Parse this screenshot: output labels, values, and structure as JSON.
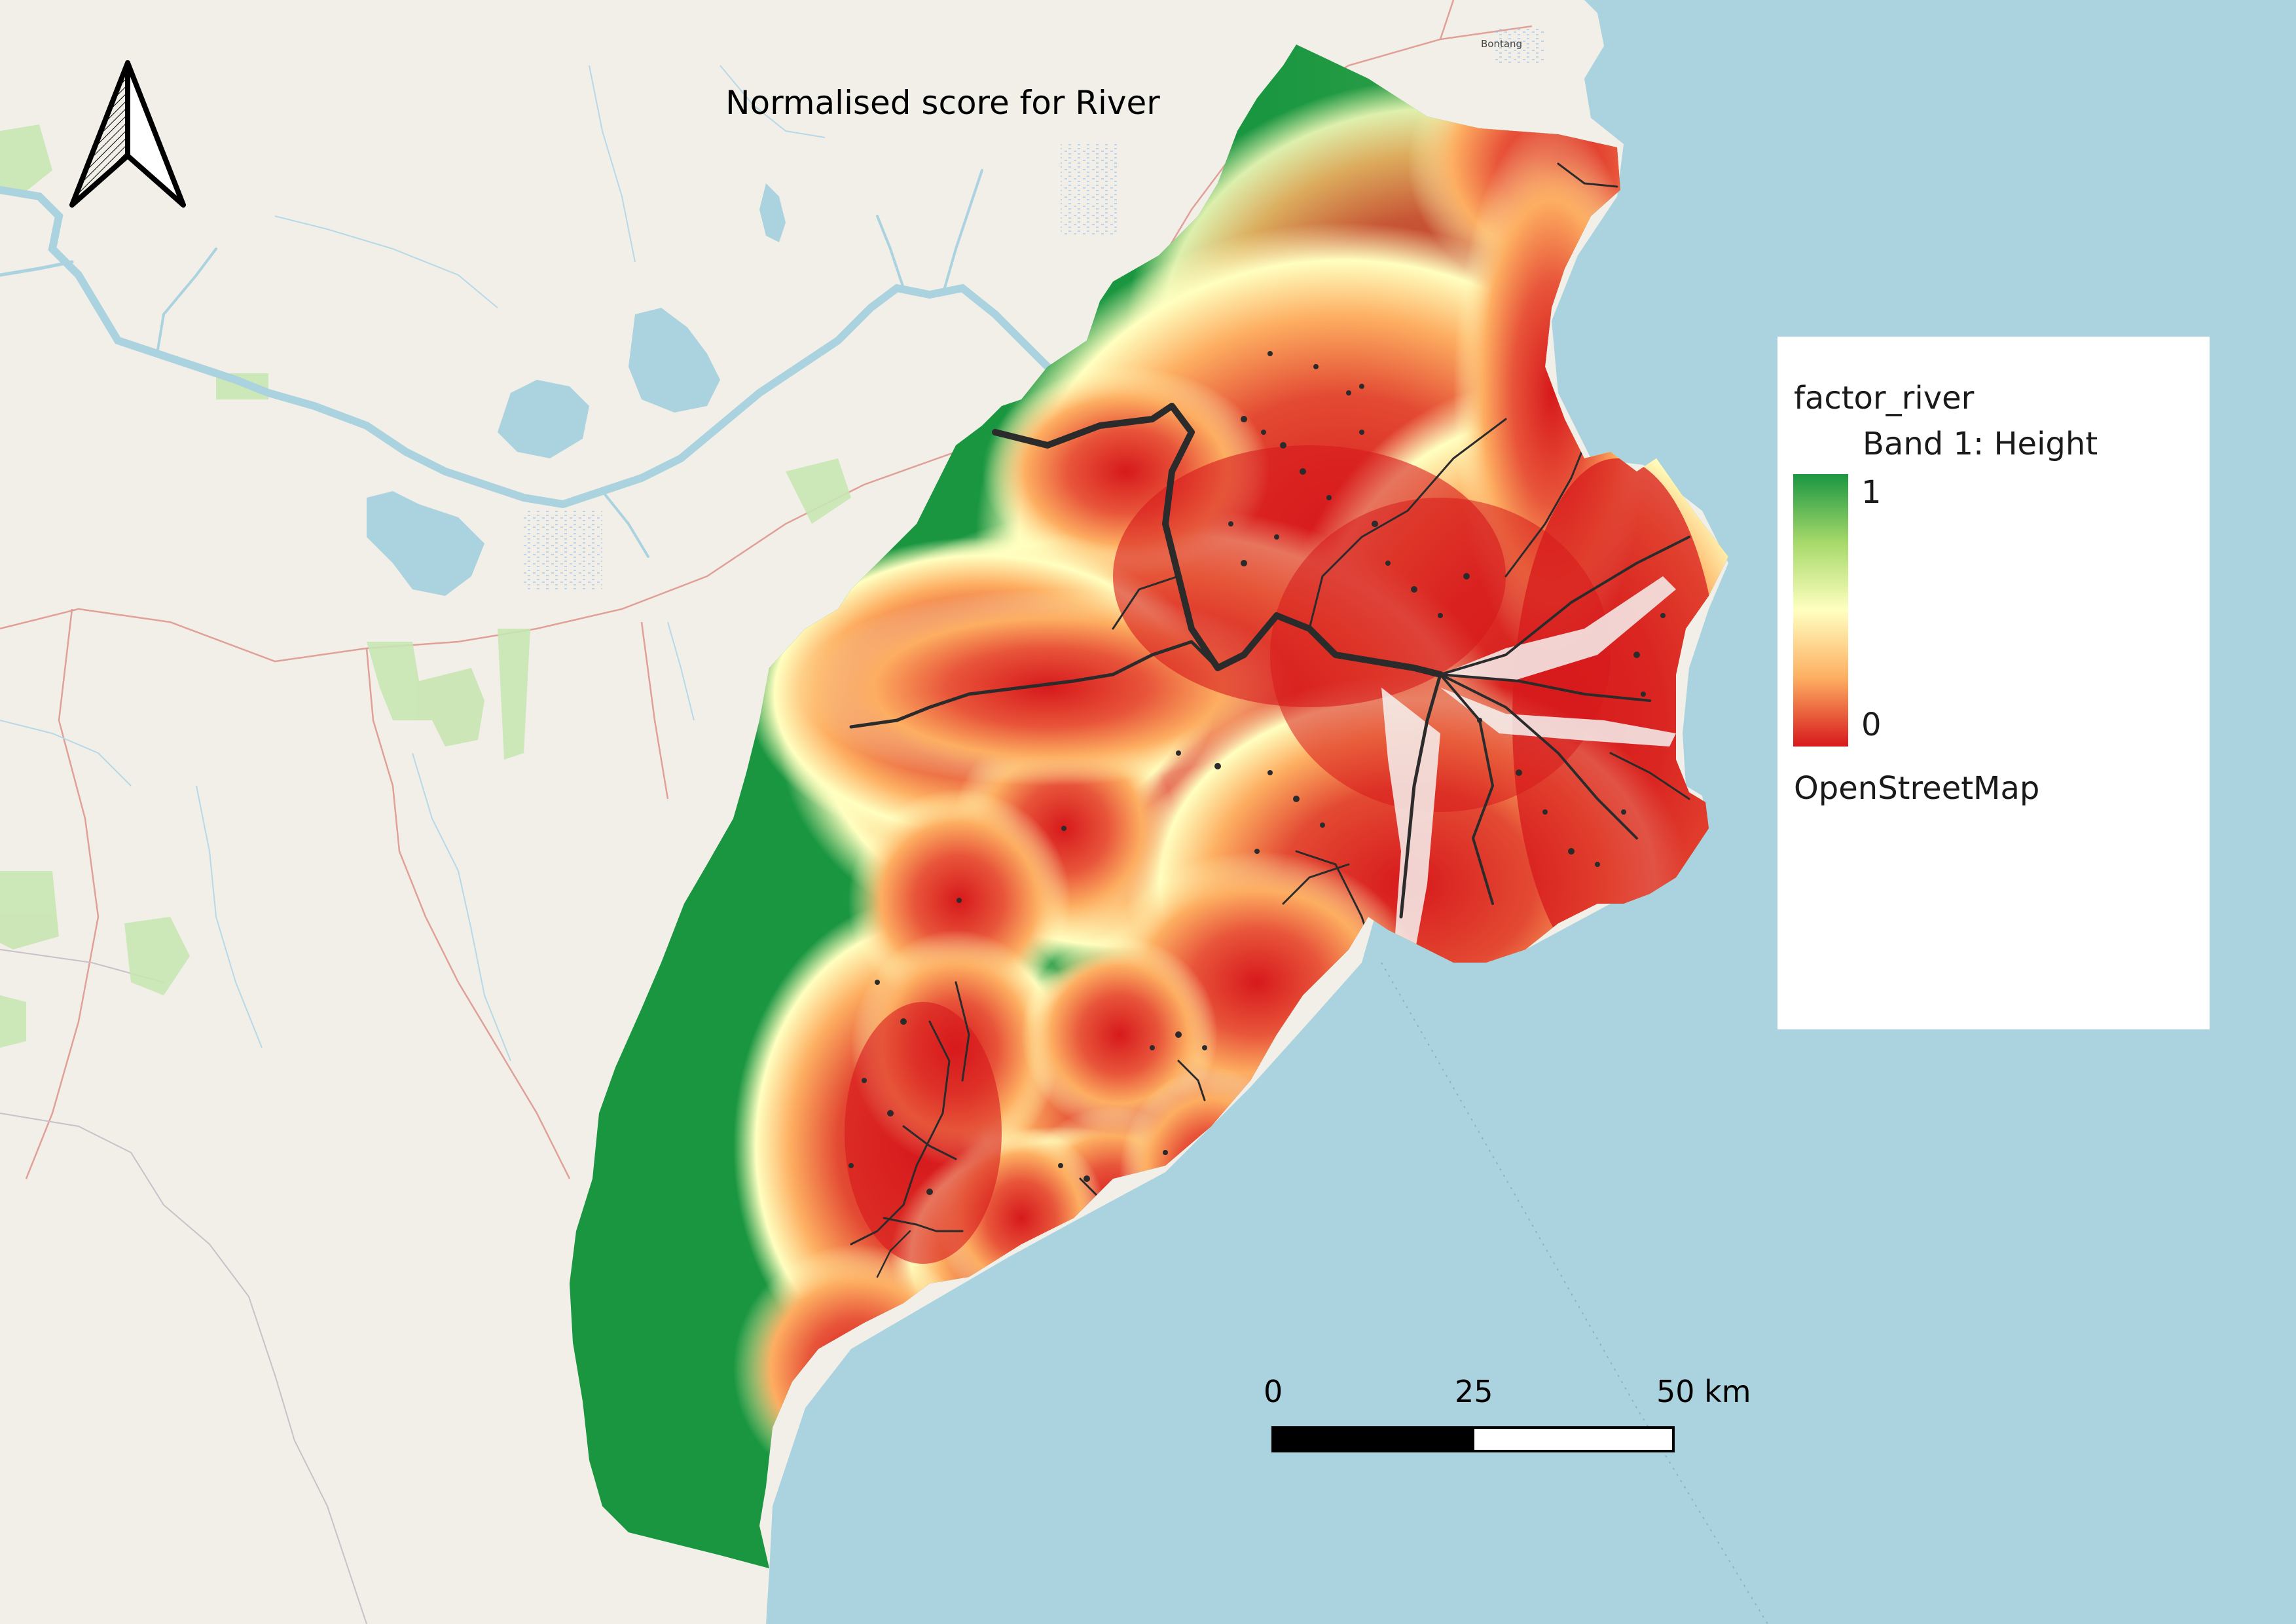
{
  "map": {
    "title": "Normalised score for River",
    "place_labels": {
      "bontang": "Bontang"
    }
  },
  "legend": {
    "layer_name": "factor_river",
    "band_label": "Band 1: Height",
    "max_value": "1",
    "min_value": "0",
    "basemap_label": "OpenStreetMap",
    "ramp_colors": [
      "#1a9641",
      "#a6d96a",
      "#ffffc0",
      "#fdae61",
      "#d7191c"
    ]
  },
  "scalebar": {
    "label_start": "0",
    "label_mid": "25",
    "label_end": "50 km"
  },
  "colors": {
    "land": "#f2efe9",
    "sea": "#aad3df",
    "river_line": "#2b2b2b"
  },
  "icons": {
    "north_arrow": "north-arrow-icon"
  }
}
